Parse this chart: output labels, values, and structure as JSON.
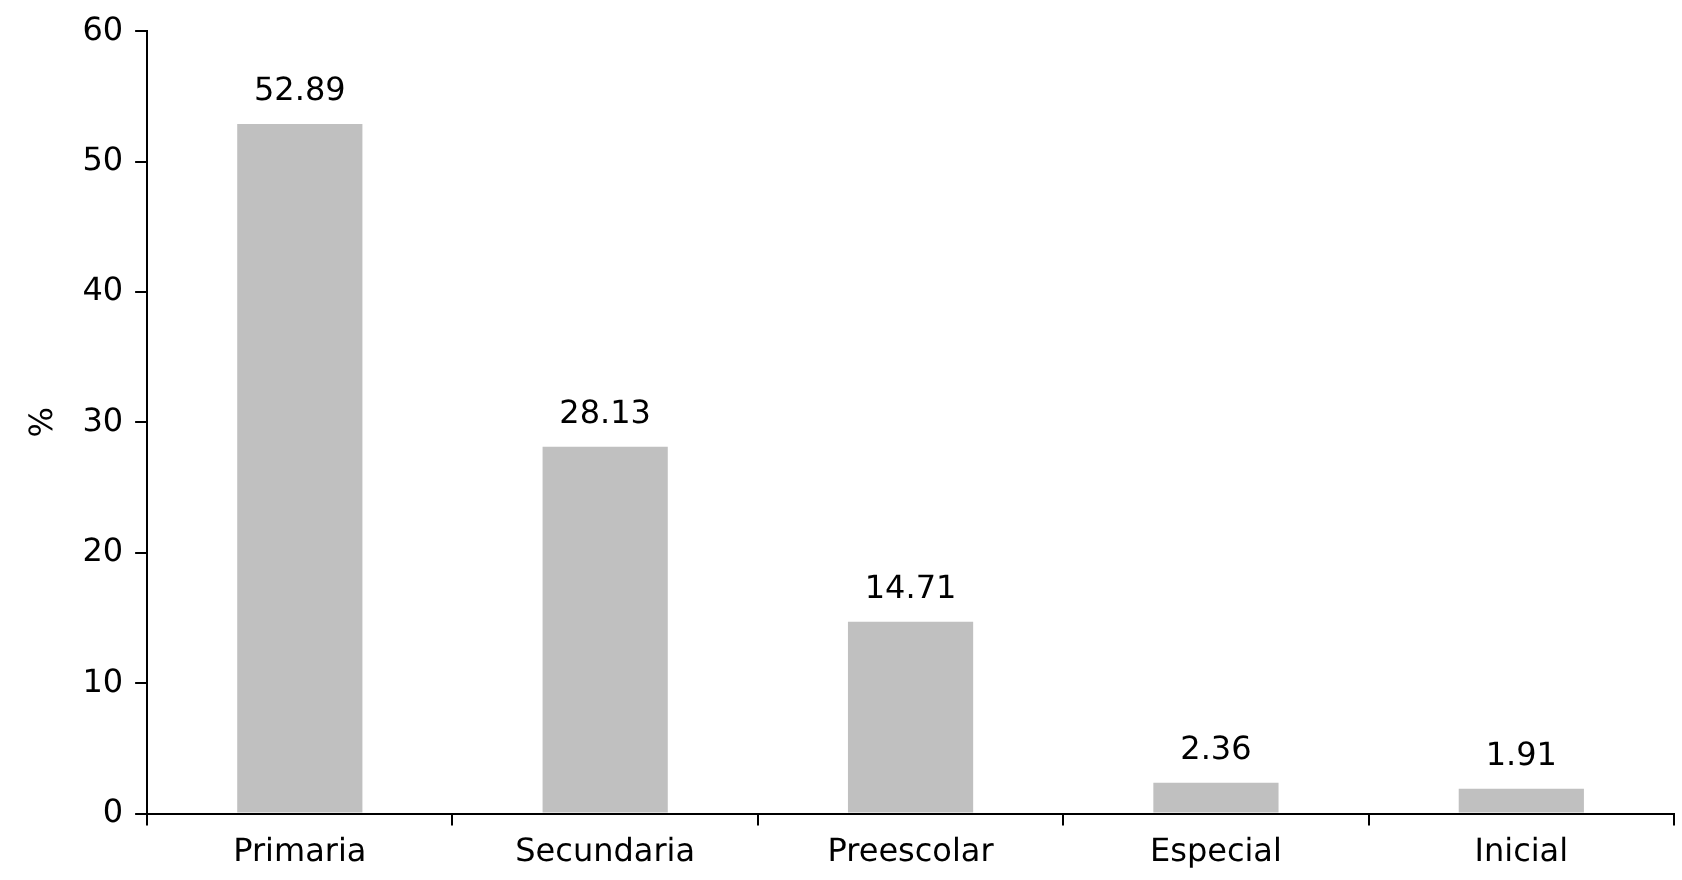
{
  "chart_data": {
    "type": "bar",
    "ylabel": "%",
    "categories": [
      "Primaria",
      "Secundaria",
      "Preescolar",
      "Especial",
      "Inicial"
    ],
    "values": [
      52.89,
      28.13,
      14.71,
      2.36,
      1.91
    ],
    "color": "#c0c0c0",
    "ylim": [
      0,
      60
    ],
    "yticks": [
      0,
      10,
      20,
      30,
      40,
      50,
      60
    ],
    "grid": false,
    "legend": false,
    "data_labels": true
  }
}
